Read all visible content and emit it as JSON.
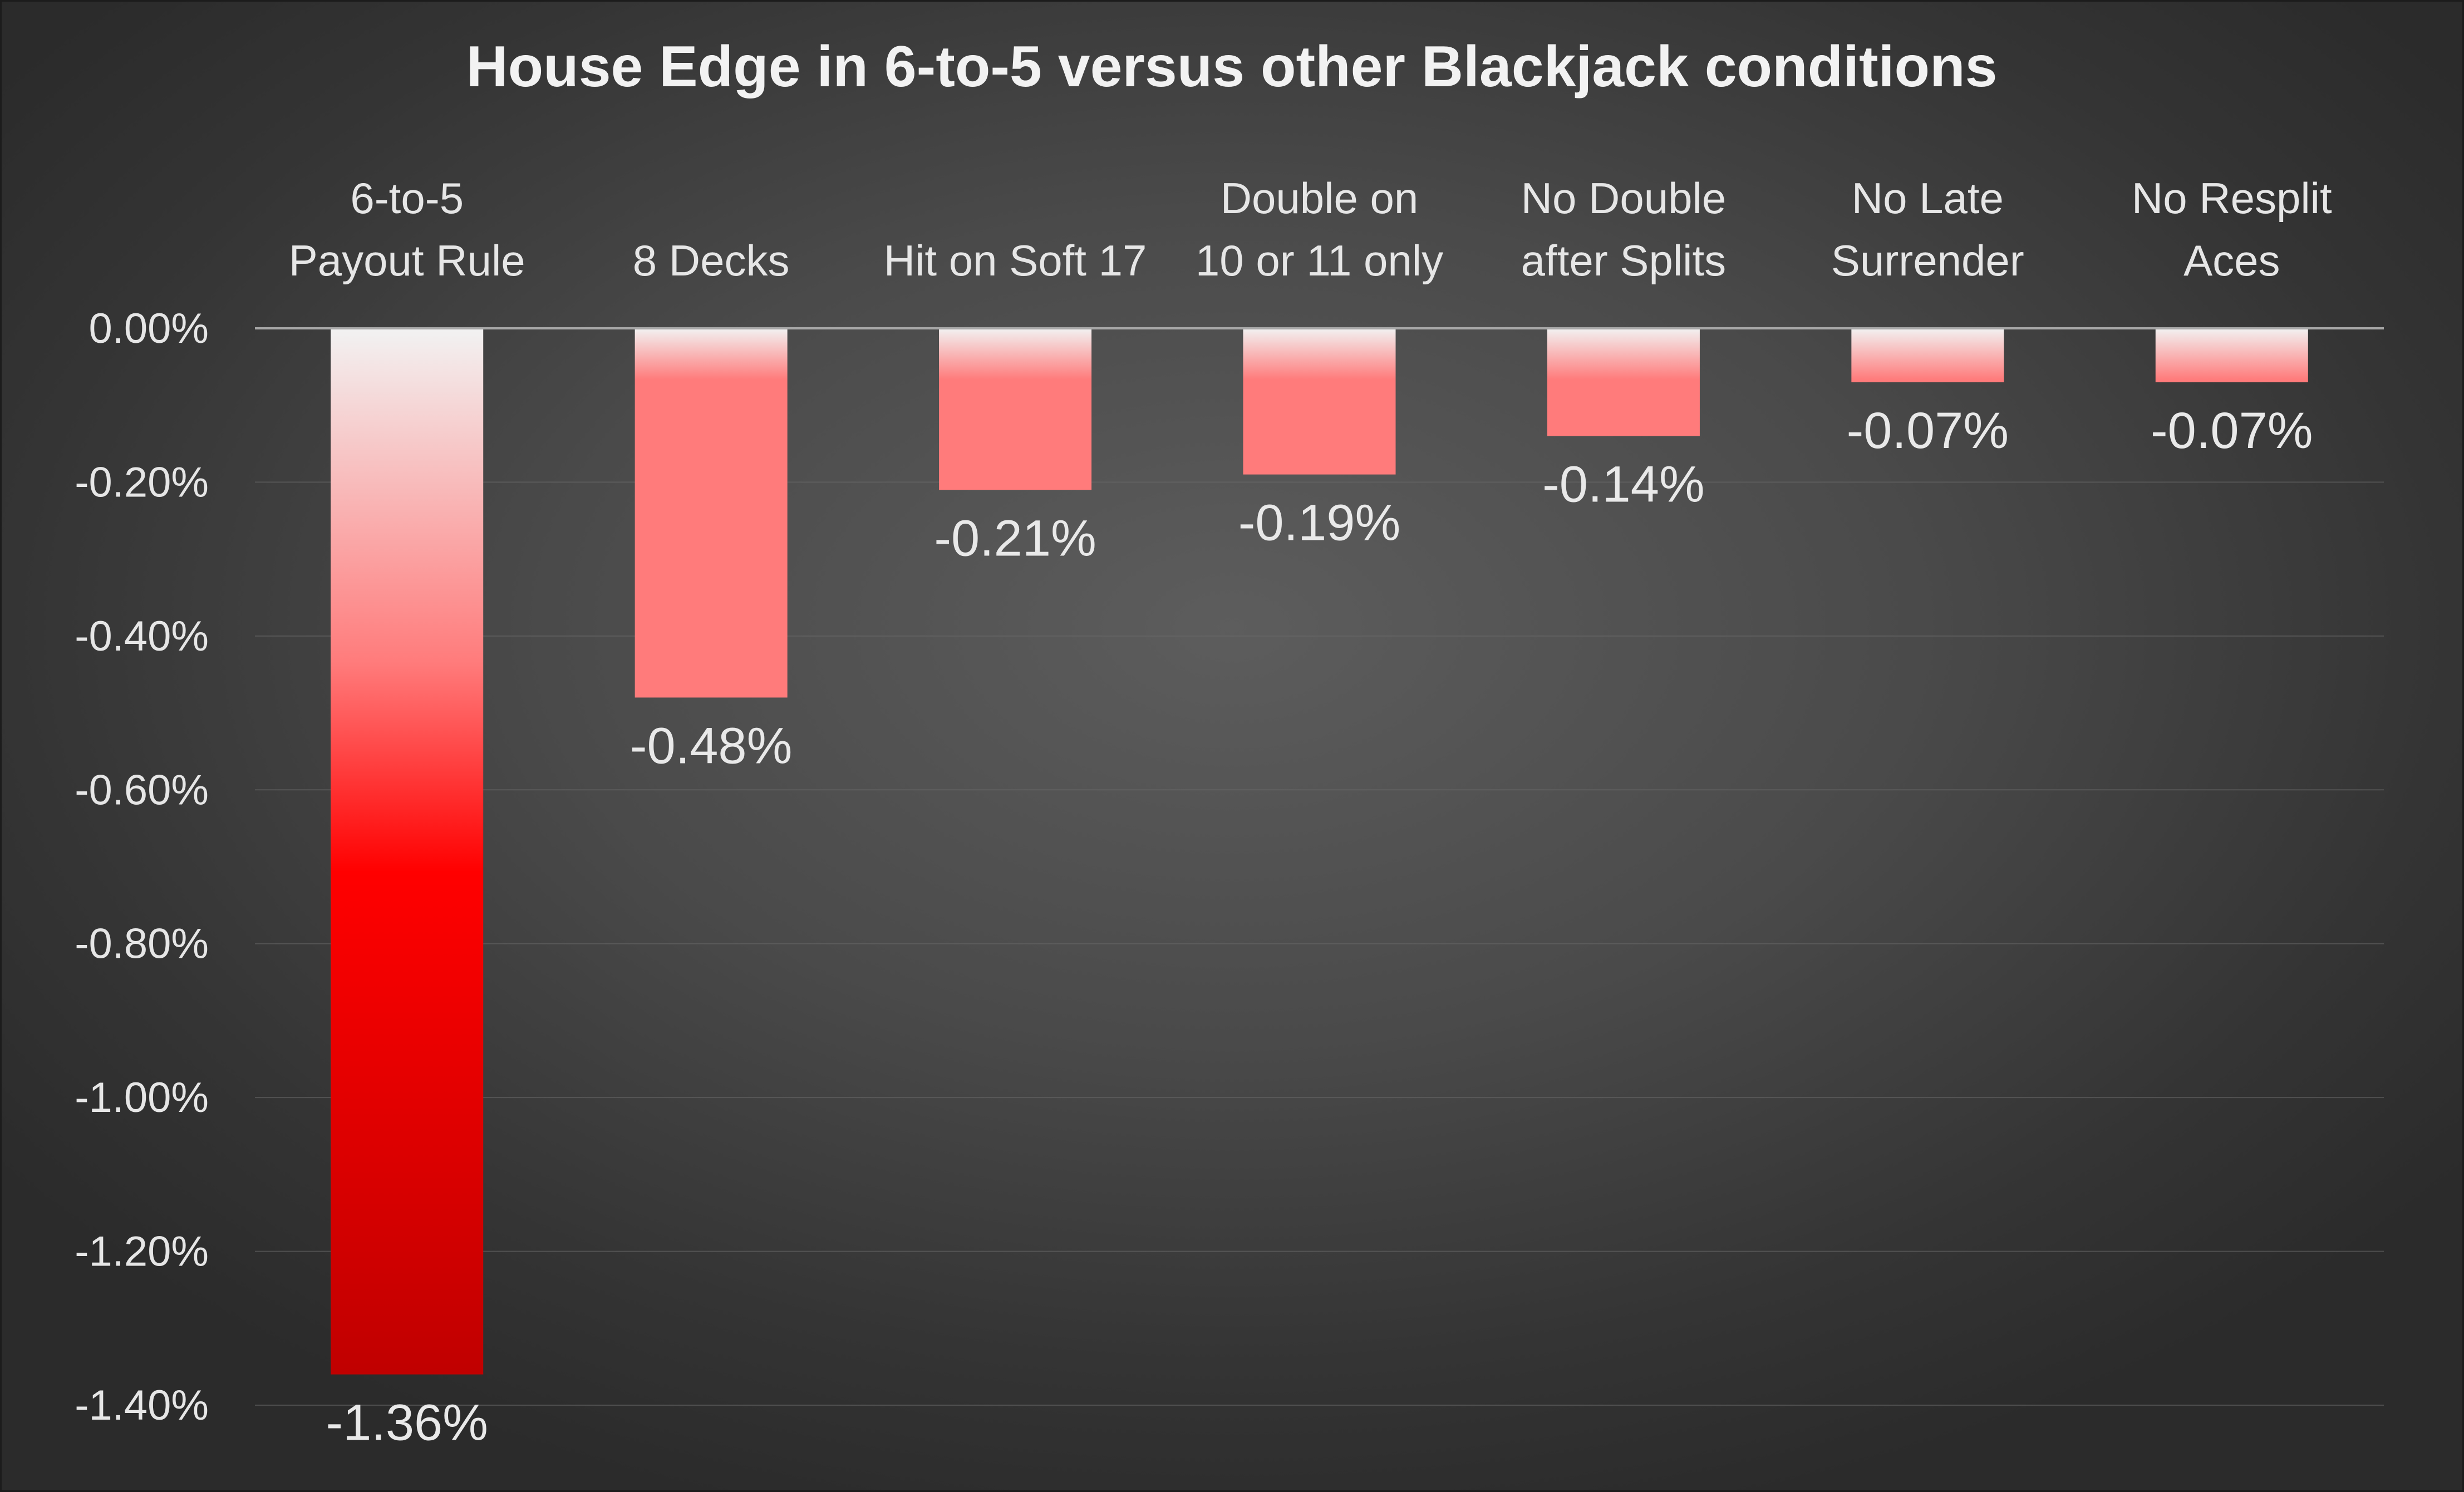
{
  "chart_data": {
    "type": "bar",
    "title": "House Edge in 6-to-5 versus other Blackjack conditions",
    "categories": [
      [
        "6-to-5",
        "Payout Rule"
      ],
      [
        "8 Decks"
      ],
      [
        "Hit on Soft 17"
      ],
      [
        "Double on",
        "10 or 11 only"
      ],
      [
        "No Double",
        "after Splits"
      ],
      [
        "No Late",
        "Surrender"
      ],
      [
        "No Resplit",
        "Aces"
      ]
    ],
    "values": [
      -1.36,
      -0.48,
      -0.21,
      -0.19,
      -0.14,
      -0.07,
      -0.07
    ],
    "data_labels": [
      "-1.36%",
      "-0.48%",
      "-0.21%",
      "-0.19%",
      "-0.14%",
      "-0.07%",
      "-0.07%"
    ],
    "y_ticks": [
      0,
      -0.2,
      -0.4,
      -0.6,
      -0.8,
      -1.0,
      -1.2,
      -1.4
    ],
    "y_tick_labels": [
      "0.00%",
      "-0.20%",
      "-0.40%",
      "-0.60%",
      "-0.80%",
      "-1.00%",
      "-1.20%",
      "-1.40%"
    ],
    "ylim": [
      -1.4,
      0
    ],
    "xlabel": "",
    "ylabel": "",
    "grid": true,
    "category_labels_position": "top",
    "colors": {
      "bar_deep_red": "#c00000",
      "bar_bright_red": "#ff0000",
      "bar_light_red": "#ff7b7b",
      "bar_top_white": "#f2f2f2",
      "background": "#4a4a4a",
      "text": "#e6e6e6"
    }
  }
}
